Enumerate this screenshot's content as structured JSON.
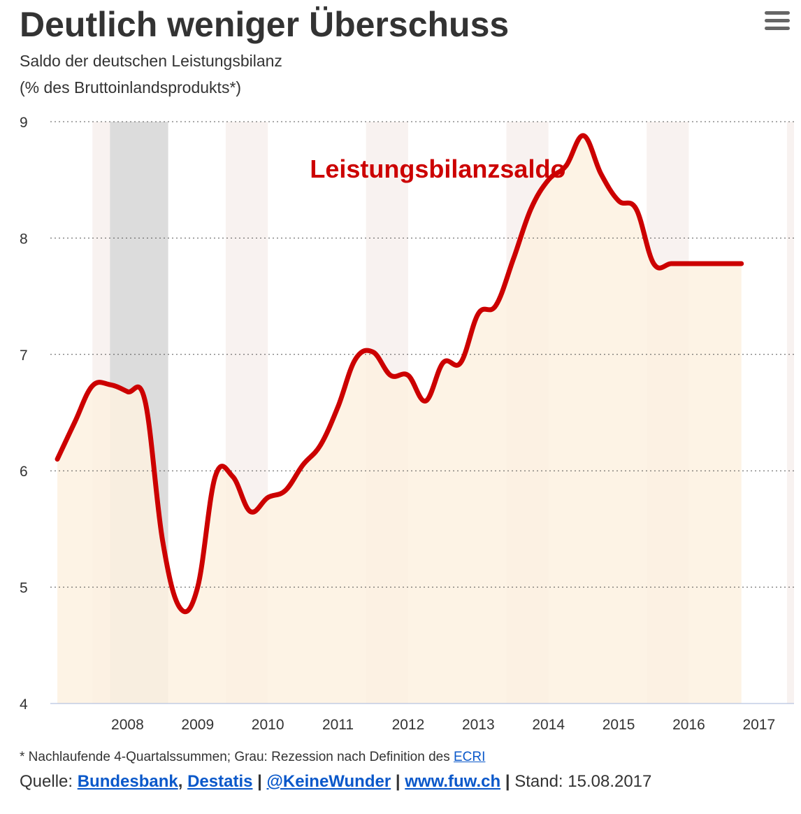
{
  "header": {
    "title": "Deutlich weniger Überschuss",
    "subtitle_line1": "Saldo der deutschen Leistungsbilanz",
    "subtitle_line2": "(% des Bruttoinlandsprodukts*)",
    "menu_icon": "hamburger-menu-icon"
  },
  "footer": {
    "footnote_text": "* Nachlaufende 4-Quartalssummen; Grau: Rezession nach Definition des",
    "footnote_link": "ECRI",
    "source_label": "Quelle:",
    "source_links": [
      "Bundesbank",
      "Destatis"
    ],
    "comma": ",",
    "pipe": "|",
    "twitter": "@KeineWunder",
    "website": "www.fuw.ch",
    "stand": "Stand: 15.08.2017"
  },
  "colors": {
    "line": "#cc0000",
    "area": "#fdf1e1",
    "recession": "#dcdcdc",
    "stripe": "#f8f2f0",
    "link": "#0a58ca",
    "text": "#333333"
  },
  "chart_data": {
    "type": "area",
    "series_label": "Leistungsbilanzsaldo",
    "ylim": [
      4,
      9
    ],
    "yticks": [
      4,
      5,
      6,
      7,
      8,
      9
    ],
    "xlim": [
      2006.9,
      2017.5
    ],
    "xticks": [
      2008,
      2009,
      2010,
      2011,
      2012,
      2013,
      2014,
      2015,
      2016,
      2017
    ],
    "grid": "dotted horizontal",
    "recession_shading": [
      [
        2007.75,
        2008.58
      ]
    ],
    "year_stripes": [
      [
        2007.5,
        2007.75
      ],
      [
        2009.4,
        2010.0
      ],
      [
        2011.4,
        2012.0
      ],
      [
        2013.4,
        2014.0
      ],
      [
        2015.4,
        2016.0
      ],
      [
        2017.4,
        2017.6
      ]
    ],
    "series": [
      {
        "name": "Leistungsbilanzsaldo",
        "x": [
          2007.0,
          2007.25,
          2007.5,
          2007.75,
          2008.0,
          2008.25,
          2008.5,
          2008.75,
          2009.0,
          2009.25,
          2009.5,
          2009.75,
          2010.0,
          2010.25,
          2010.5,
          2010.75,
          2011.0,
          2011.25,
          2011.5,
          2011.75,
          2012.0,
          2012.25,
          2012.5,
          2012.75,
          2013.0,
          2013.25,
          2013.5,
          2013.75,
          2014.0,
          2014.25,
          2014.5,
          2014.75,
          2015.0,
          2015.25,
          2015.5,
          2015.75,
          2016.0,
          2016.25,
          2016.5,
          2016.75
        ],
        "values": [
          6.1,
          6.42,
          6.73,
          6.74,
          6.68,
          6.6,
          5.4,
          4.82,
          5.0,
          5.95,
          5.95,
          5.65,
          5.77,
          5.83,
          6.05,
          6.22,
          6.55,
          6.96,
          7.02,
          6.82,
          6.82,
          6.6,
          6.93,
          6.93,
          7.35,
          7.42,
          7.82,
          8.25,
          8.5,
          8.62,
          8.88,
          8.55,
          8.32,
          8.25,
          7.78,
          7.78,
          7.78,
          7.78,
          7.78,
          7.78
        ]
      }
    ]
  }
}
